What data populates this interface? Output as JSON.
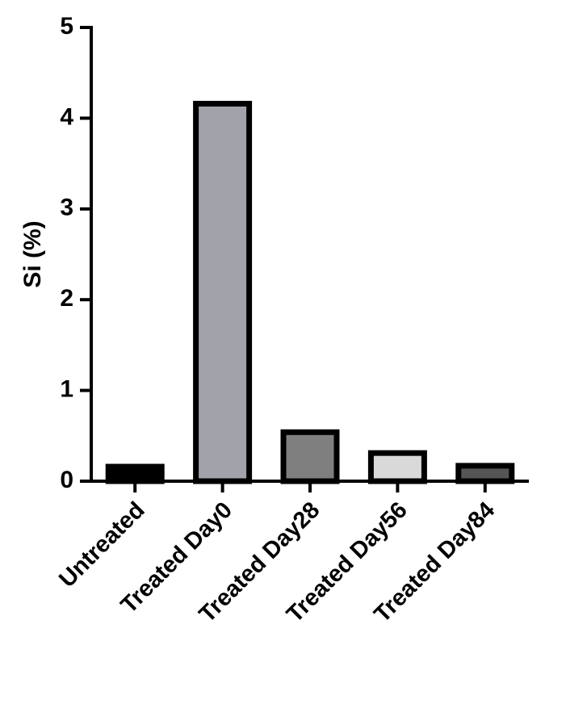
{
  "chart_data": {
    "type": "bar",
    "y_label": "Si (%)",
    "categories": [
      "Untreated",
      "Treated Day0",
      "Treated Day28",
      "Treated Day56",
      "Treated Day84"
    ],
    "values": [
      0.16,
      4.16,
      0.54,
      0.31,
      0.17
    ],
    "colors": [
      "#000000",
      "#a2a2aa",
      "#7f7f7f",
      "#d9d9d9",
      "#555555"
    ],
    "ylim": [
      0,
      5
    ],
    "yticks": [
      0,
      1,
      2,
      3,
      4,
      5
    ],
    "grid": false
  }
}
